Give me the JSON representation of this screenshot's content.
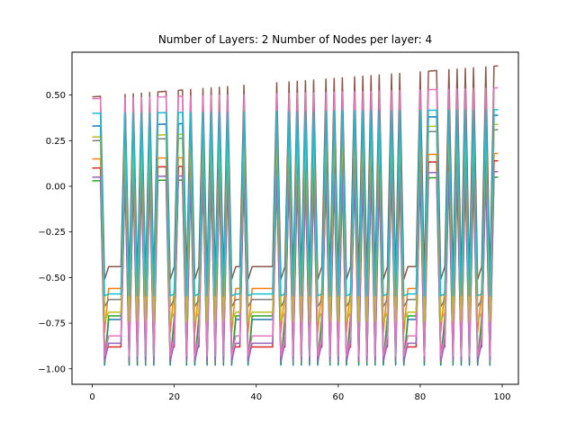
{
  "chart_data": {
    "type": "line",
    "title": "Number of Layers: 2 Number of Nodes per layer: 4",
    "xlabel": "",
    "ylabel": "",
    "xlim": [
      -4.95,
      103.95
    ],
    "ylim": [
      -1.085,
      0.735
    ],
    "xticks": [
      0,
      20,
      40,
      60,
      80,
      100
    ],
    "yticks": [
      -1.0,
      -0.75,
      -0.5,
      -0.25,
      0.0,
      0.25,
      0.5
    ],
    "xtick_labels": [
      "0",
      "20",
      "40",
      "60",
      "80",
      "100"
    ],
    "ytick_labels": [
      "−1.00",
      "−0.75",
      "−0.50",
      "−0.25",
      "0.00",
      "0.25",
      "0.50"
    ],
    "grid": false,
    "x_start": 0,
    "x_step": 1,
    "point_count": 100,
    "high_indices": [
      0,
      1,
      2,
      8,
      10,
      12,
      14,
      16,
      17,
      18,
      21,
      22,
      24,
      27,
      29,
      31,
      33,
      37,
      45,
      48,
      50,
      52,
      54,
      57,
      59,
      61,
      64,
      66,
      68,
      70,
      73,
      75,
      80,
      82,
      83,
      84,
      87,
      89,
      91,
      93,
      96,
      98,
      99
    ],
    "low_indices": [
      3,
      4,
      5,
      6,
      7,
      9,
      11,
      13,
      15,
      19,
      20,
      23,
      25,
      26,
      28,
      30,
      32,
      34,
      35,
      36,
      38,
      39,
      40,
      41,
      42,
      43,
      44,
      46,
      47,
      49,
      51,
      53,
      55,
      56,
      58,
      60,
      62,
      63,
      65,
      67,
      69,
      71,
      72,
      74,
      76,
      77,
      78,
      79,
      81,
      85,
      86,
      88,
      90,
      92,
      94,
      95,
      97
    ],
    "series": [
      {
        "color": "#1f77b4",
        "early_high": 0.33,
        "late_high": 0.39,
        "low": -0.98,
        "plateau": -0.73
      },
      {
        "color": "#ff7f0e",
        "early_high": 0.15,
        "late_high": 0.18,
        "low": -0.8,
        "plateau": -0.56
      },
      {
        "color": "#2ca02c",
        "early_high": 0.03,
        "late_high": 0.05,
        "low": -0.97,
        "plateau": -0.71
      },
      {
        "color": "#d62728",
        "early_high": 0.1,
        "late_high": 0.14,
        "low": -0.9,
        "plateau": -0.88
      },
      {
        "color": "#9467bd",
        "early_high": 0.05,
        "late_high": 0.08,
        "low": -0.96,
        "plateau": -0.86
      },
      {
        "color": "#8c564b",
        "early_high": 0.49,
        "late_high": 0.66,
        "low": -0.51,
        "plateau": -0.44
      },
      {
        "color": "#e377c2",
        "early_high": 0.48,
        "late_high": 0.54,
        "low": -0.93,
        "plateau": -0.82
      },
      {
        "color": "#7f7f7f",
        "early_high": 0.25,
        "late_high": 0.31,
        "low": -0.66,
        "plateau": -0.62
      },
      {
        "color": "#bcbd22",
        "early_high": 0.27,
        "late_high": 0.34,
        "low": -0.74,
        "plateau": -0.69
      },
      {
        "color": "#17becf",
        "early_high": 0.4,
        "late_high": 0.42,
        "low": -0.6,
        "plateau": -0.59
      }
    ]
  }
}
